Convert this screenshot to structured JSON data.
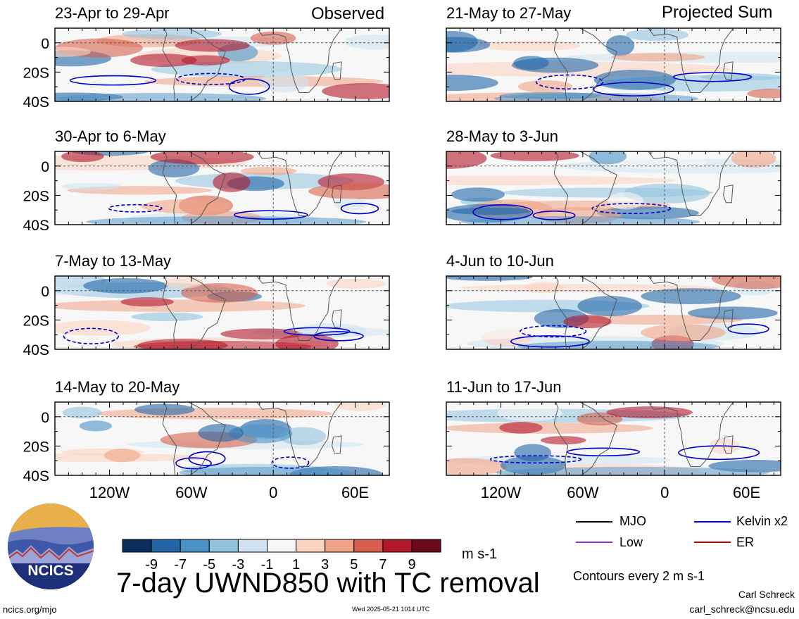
{
  "header": {
    "observed_label": "Observed",
    "projected_label": "Projected Sum"
  },
  "chart_data": {
    "type": "heatmap",
    "title": "7-day UWND850 with TC removal",
    "units": "m s-1",
    "colorbar": {
      "levels": [
        -9,
        -7,
        -5,
        -3,
        -1,
        1,
        3,
        5,
        7,
        9
      ],
      "colors": [
        "#0b2f5c",
        "#2266a8",
        "#4a92c6",
        "#92c3de",
        "#cfe4f0",
        "#f7f7f7",
        "#fbd3c1",
        "#f1a385",
        "#d6604d",
        "#b2182b",
        "#6b0a1d"
      ]
    },
    "x_axis": {
      "ticks": [
        "120W",
        "60W",
        "0",
        "60E"
      ]
    },
    "y_axis": {
      "ticks": [
        "0",
        "20S",
        "40S"
      ]
    },
    "panels": [
      {
        "column": "observed",
        "label": "23-Apr to 29-Apr"
      },
      {
        "column": "observed",
        "label": "30-Apr to 6-May"
      },
      {
        "column": "observed",
        "label": "7-May to 13-May"
      },
      {
        "column": "observed",
        "label": "14-May to 20-May"
      },
      {
        "column": "projected",
        "label": "21-May to 27-May"
      },
      {
        "column": "projected",
        "label": "28-May to 3-Jun"
      },
      {
        "column": "projected",
        "label": "4-Jun to 10-Jun"
      },
      {
        "column": "projected",
        "label": "11-Jun to 17-Jun"
      }
    ],
    "contour_legend": [
      {
        "label": "MJO",
        "color": "#000000"
      },
      {
        "label": "Kelvin x2",
        "color": "#0000cc"
      },
      {
        "label": "Low",
        "color": "#9933cc"
      },
      {
        "label": "ER",
        "color": "#cc0000"
      }
    ],
    "contour_note": "Contours every 2 m s-1"
  },
  "footer": {
    "logo_text": "NCICS",
    "site": "ncics.org/mjo",
    "timestamp": "Wed 2025-05-21 1014 UTC",
    "author": "Carl Schreck",
    "email": "carl_schreck@ncsu.edu"
  }
}
